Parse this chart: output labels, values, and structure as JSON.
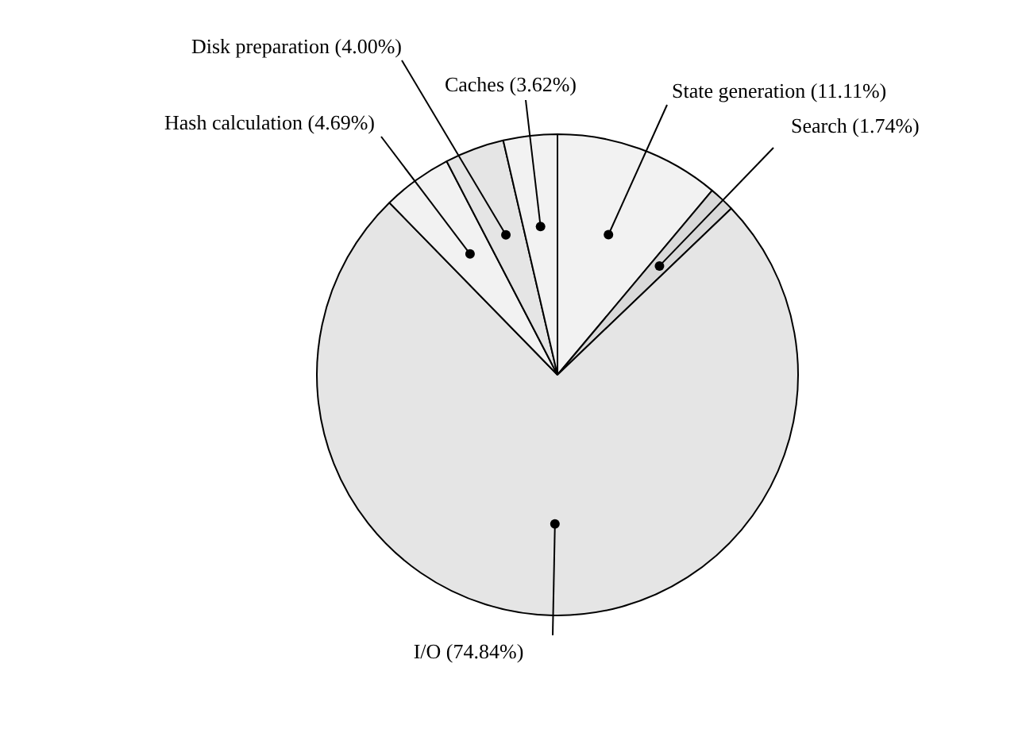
{
  "chart_data": {
    "type": "pie",
    "categories": [
      "State generation",
      "Search",
      "I/O",
      "Hash calculation",
      "Disk preparation",
      "Caches"
    ],
    "values": [
      11.11,
      1.74,
      74.84,
      4.69,
      4.0,
      3.62
    ],
    "colors": [
      "#f2f2f2",
      "#d9d9d9",
      "#e5e5e5",
      "#f2f2f2",
      "#e5e5e5",
      "#f2f2f2"
    ],
    "value_labels": [
      "(11.11%)",
      "(1.74%)",
      "(74.84%)",
      "(4.69%)",
      "(4.00%)",
      "(3.62%)"
    ],
    "legend": false
  }
}
